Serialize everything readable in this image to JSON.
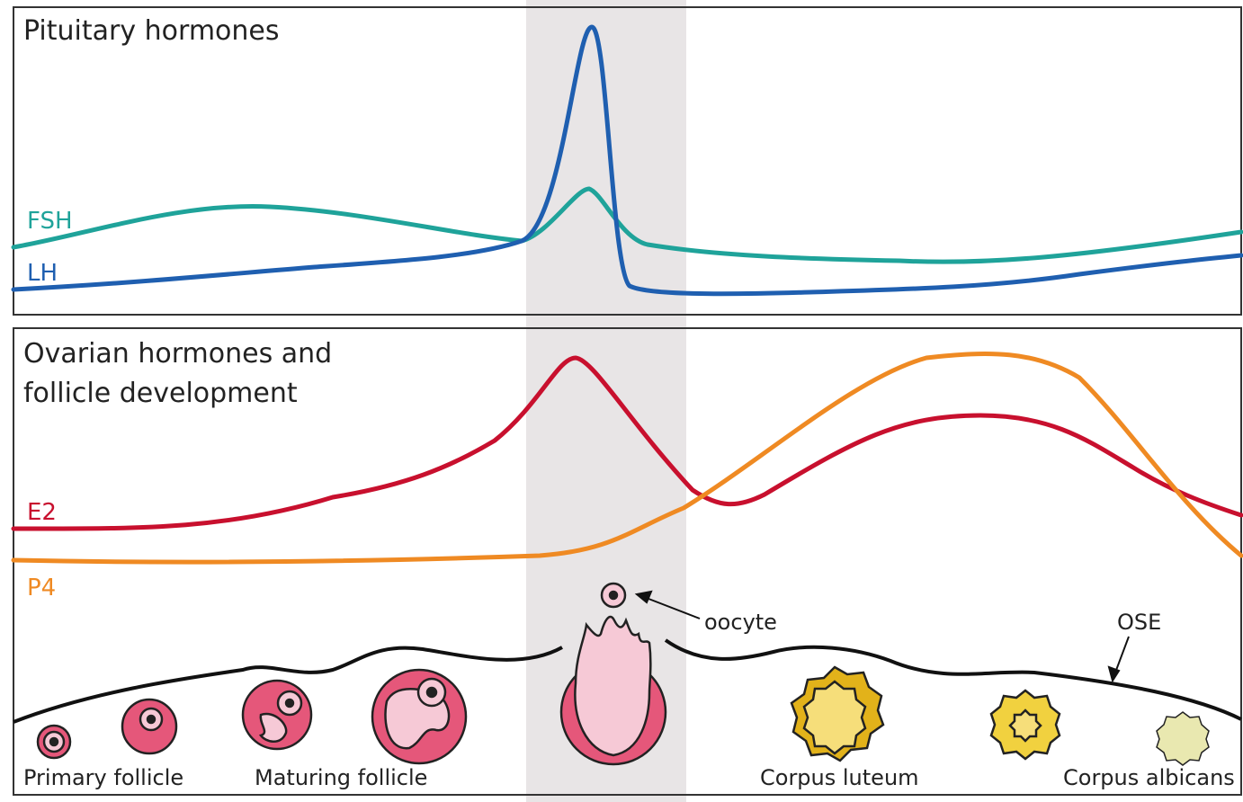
{
  "top_panel": {
    "title": "Pituitary hormones",
    "labels": [
      "FSH",
      "LH"
    ]
  },
  "bottom_panel": {
    "title_lines": [
      "Ovarian hormones and",
      "follicle development"
    ],
    "labels": [
      "E2",
      "P4"
    ],
    "annotations": [
      "oocyte",
      "OSE"
    ],
    "stages": [
      "Primary follicle",
      "Maturing follicle",
      "Corpus luteum",
      "Corpus albicans"
    ]
  }
}
